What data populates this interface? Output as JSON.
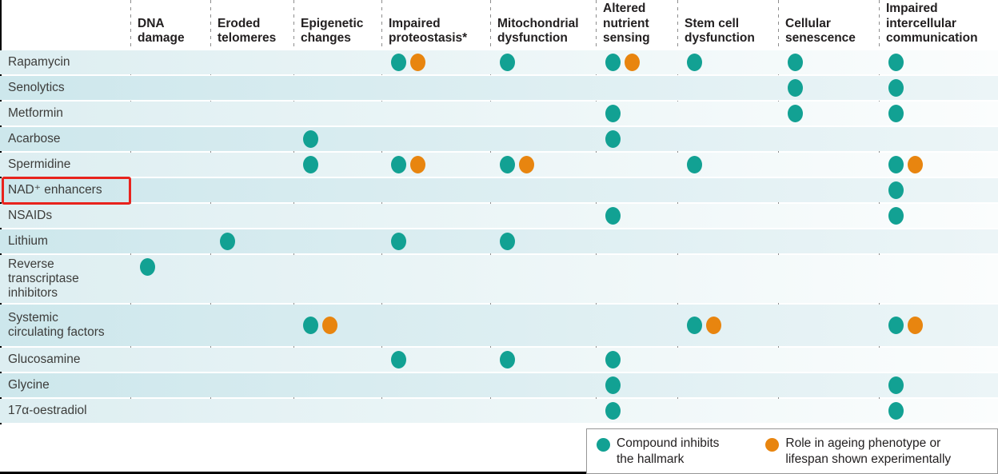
{
  "chart_data": {
    "type": "matrix",
    "title": "",
    "columns": [
      "DNA\ndamage",
      "Eroded\ntelomeres",
      "Epigenetic\nchanges",
      "Impaired\nproteostasis*",
      "Mitochondrial\ndysfunction",
      "Altered\nnutrient\nsensing",
      "Stem cell\ndysfunction",
      "Cellular\nsenescence",
      "Impaired\nintercellular\ncommunication"
    ],
    "mark_codes": {
      "T": "Compound inhibits the hallmark",
      "O": "Role in ageing phenotype or lifespan shown experimentally"
    },
    "rows": [
      {
        "label": "Rapamycin",
        "highlight": false,
        "cells": [
          [],
          [],
          [],
          [
            "T",
            "O"
          ],
          [
            "T"
          ],
          [
            "T",
            "O"
          ],
          [
            "T"
          ],
          [
            "T"
          ],
          [
            "T"
          ]
        ]
      },
      {
        "label": "Senolytics",
        "highlight": false,
        "cells": [
          [],
          [],
          [],
          [],
          [],
          [],
          [],
          [
            "T"
          ],
          [
            "T"
          ]
        ]
      },
      {
        "label": "Metformin",
        "highlight": false,
        "cells": [
          [],
          [],
          [],
          [],
          [],
          [
            "T"
          ],
          [],
          [
            "T"
          ],
          [
            "T"
          ]
        ]
      },
      {
        "label": "Acarbose",
        "highlight": false,
        "cells": [
          [],
          [],
          [
            "T"
          ],
          [],
          [],
          [
            "T"
          ],
          [],
          [],
          []
        ]
      },
      {
        "label": "Spermidine",
        "highlight": false,
        "cells": [
          [],
          [],
          [
            "T"
          ],
          [
            "T",
            "O"
          ],
          [
            "T",
            "O"
          ],
          [],
          [
            "T"
          ],
          [],
          [
            "T",
            "O"
          ]
        ]
      },
      {
        "label": "NAD⁺ enhancers",
        "highlight": true,
        "cells": [
          [],
          [],
          [],
          [],
          [],
          [],
          [],
          [],
          [
            "T"
          ]
        ]
      },
      {
        "label": "NSAIDs",
        "highlight": false,
        "cells": [
          [],
          [],
          [],
          [],
          [],
          [
            "T"
          ],
          [],
          [],
          [
            "T"
          ]
        ]
      },
      {
        "label": "Lithium",
        "highlight": false,
        "cells": [
          [],
          [
            "T"
          ],
          [],
          [
            "T"
          ],
          [
            "T"
          ],
          [],
          [],
          [],
          []
        ]
      },
      {
        "label": "Reverse\ntranscriptase\ninhibitors",
        "highlight": false,
        "cells": [
          [
            "T"
          ],
          [],
          [],
          [],
          [],
          [],
          [],
          [],
          []
        ]
      },
      {
        "label": "Systemic\ncirculating factors",
        "highlight": false,
        "cells": [
          [],
          [],
          [
            "T",
            "O"
          ],
          [],
          [],
          [],
          [
            "T",
            "O"
          ],
          [],
          [
            "T",
            "O"
          ]
        ]
      },
      {
        "label": "Glucosamine",
        "highlight": false,
        "cells": [
          [],
          [],
          [],
          [
            "T"
          ],
          [
            "T"
          ],
          [
            "T"
          ],
          [],
          [],
          []
        ]
      },
      {
        "label": "Glycine",
        "highlight": false,
        "cells": [
          [],
          [],
          [],
          [],
          [],
          [
            "T"
          ],
          [],
          [],
          [
            "T"
          ]
        ]
      },
      {
        "label": "17α-oestradiol",
        "highlight": false,
        "cells": [
          [],
          [],
          [],
          [],
          [],
          [
            "T"
          ],
          [],
          [],
          [
            "T"
          ]
        ]
      }
    ],
    "legend": [
      {
        "marker": "teal-dot",
        "label": "Compound inhibits\nthe hallmark"
      },
      {
        "marker": "orange-dot",
        "label": "Role in ageing phenotype or\nlifespan shown experimentally"
      }
    ],
    "legend_position": "bottom-right",
    "annotations": {
      "highlighted_row": "NAD⁺ enhancers",
      "highlight_style": "red box"
    }
  },
  "colors": {
    "inhibits_dot": "#12a193",
    "experimental_dot": "#e8850f",
    "highlight_box": "#e8231d",
    "row_tint_light": "#ddeef1",
    "row_tint_dark": "#cde7ec",
    "header_text": "#232021",
    "row_label_text": "#3c3c3a"
  }
}
